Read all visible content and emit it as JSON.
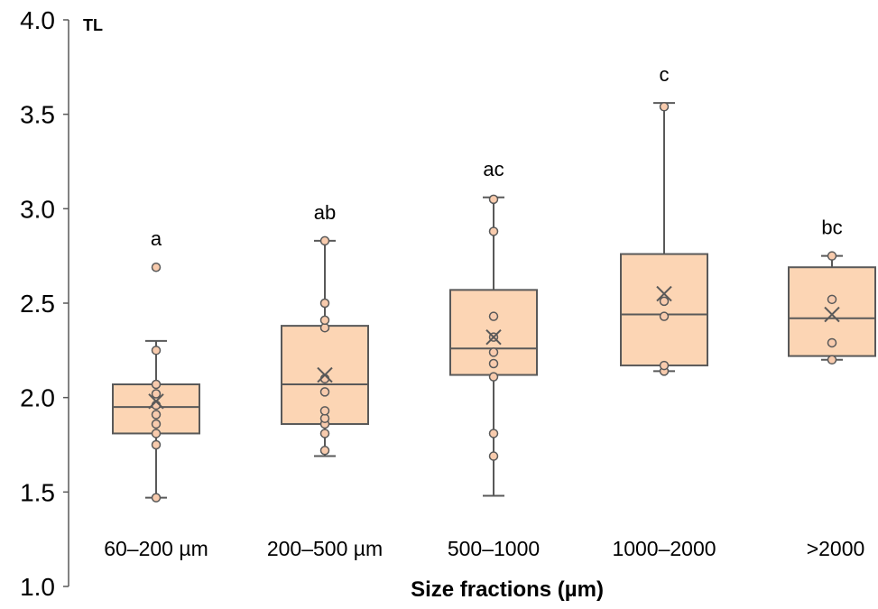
{
  "chart_data": {
    "type": "box",
    "ylabel": "TL",
    "xlabel": "Size fractions (µm)",
    "ylim": [
      1.0,
      4.0
    ],
    "yticks": [
      "1.0",
      "1.5",
      "2.0",
      "2.5",
      "3.0",
      "3.5",
      "4.0"
    ],
    "ytick_values": [
      1.0,
      1.5,
      2.0,
      2.5,
      3.0,
      3.5,
      4.0
    ],
    "grid": false,
    "legend": "none",
    "colors": {
      "box_fill": "#fcd5b4",
      "box_stroke": "#595959",
      "point_fill": "#f8cbad"
    },
    "categories": [
      "60–200 µm",
      "200–500 µm",
      "500–1000",
      "1000–2000",
      ">2000"
    ],
    "boxes": [
      {
        "category": "60–200 µm",
        "min": 1.47,
        "q1": 1.81,
        "median": 1.95,
        "q3": 2.07,
        "max": 2.3,
        "mean": 1.98,
        "points": [
          1.47,
          1.75,
          1.81,
          1.86,
          1.91,
          1.96,
          2.02,
          2.07,
          2.25,
          2.69
        ],
        "significance": "a"
      },
      {
        "category": "200–500 µm",
        "min": 1.69,
        "q1": 1.86,
        "median": 2.07,
        "q3": 2.38,
        "max": 2.83,
        "mean": 2.12,
        "points": [
          1.72,
          1.81,
          1.86,
          1.89,
          1.93,
          2.03,
          2.1,
          2.37,
          2.41,
          2.5,
          2.83
        ],
        "significance": "ab"
      },
      {
        "category": "500–1000",
        "min": 1.48,
        "q1": 2.12,
        "median": 2.26,
        "q3": 2.57,
        "max": 3.06,
        "mean": 2.32,
        "points": [
          1.69,
          1.81,
          2.11,
          2.18,
          2.24,
          2.32,
          2.43,
          2.88,
          3.05
        ],
        "significance": "ac"
      },
      {
        "category": "1000–2000",
        "min": 2.14,
        "q1": 2.17,
        "median": 2.44,
        "q3": 2.76,
        "max": 3.56,
        "mean": 2.55,
        "points": [
          2.14,
          2.17,
          2.43,
          2.51,
          3.54
        ],
        "significance": "c"
      },
      {
        "category": ">2000",
        "min": 2.2,
        "q1": 2.22,
        "median": 2.42,
        "q3": 2.69,
        "max": 2.75,
        "mean": 2.44,
        "points": [
          2.2,
          2.29,
          2.52,
          2.75
        ],
        "significance": "bc"
      }
    ]
  }
}
